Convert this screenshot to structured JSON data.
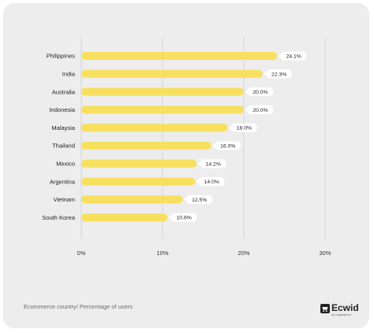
{
  "chart_data": {
    "type": "bar",
    "orientation": "horizontal",
    "categories": [
      "Philippines",
      "India",
      "Australia",
      "Indonesia",
      "Malaysia",
      "Thailand",
      "Mexico",
      "Argentina",
      "Vietnam",
      "South Korea"
    ],
    "values": [
      24.1,
      22.3,
      20.0,
      20.0,
      18.0,
      16.0,
      14.2,
      14.0,
      12.5,
      10.6
    ],
    "value_labels": [
      "24.1%",
      "22.3%",
      "20.0%",
      "20.0%",
      "18.0%",
      "16.0%",
      "14.2%",
      "14.0%",
      "12.5%",
      "10.6%"
    ],
    "x_ticks": [
      0,
      10,
      20,
      30
    ],
    "x_tick_labels": [
      "0%",
      "10%",
      "20%",
      "30%"
    ],
    "xlim": [
      0,
      30
    ],
    "grid": "vertical",
    "bar_color": "#f7df60",
    "background_color": "#ededed"
  },
  "caption": "Ecommerce country/ Percentage of users",
  "brand": {
    "name": "Ecwid",
    "tagline": "by Lightspeed"
  }
}
